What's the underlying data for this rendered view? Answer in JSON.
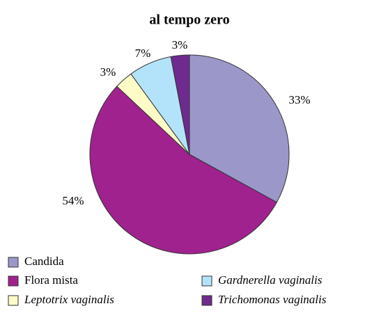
{
  "chart_data": {
    "type": "pie",
    "title": "al tempo zero",
    "categories": [
      "Candida",
      "Flora mista",
      "Leptotrix vaginalis",
      "Gardnerella vaginalis",
      "Trichomonas vaginalis"
    ],
    "values": [
      33,
      54,
      3,
      7,
      3
    ],
    "value_labels": [
      "33%",
      "54%",
      "3%",
      "7%",
      "3%"
    ],
    "colors": [
      "#9b97c9",
      "#a0228e",
      "#fdfbc6",
      "#b3e3fa",
      "#6f2a8e"
    ],
    "legend_italic": [
      false,
      false,
      true,
      true,
      true
    ]
  }
}
